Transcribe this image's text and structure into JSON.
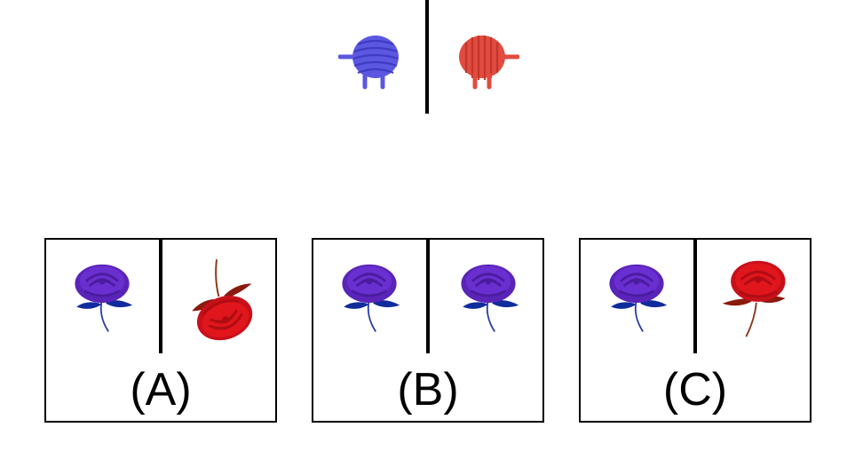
{
  "prompt": {
    "left_icon": "blue-yarn-icon",
    "right_icon": "red-yarn-icon"
  },
  "options": [
    {
      "label": "(A)",
      "left_icon": "purple-rose-icon",
      "right_icon": "red-rose-upside-down-icon"
    },
    {
      "label": "(B)",
      "left_icon": "purple-rose-icon",
      "right_icon": "purple-rose-icon"
    },
    {
      "label": "(C)",
      "left_icon": "purple-rose-icon",
      "right_icon": "red-rose-icon"
    }
  ],
  "colors": {
    "yarn_blue": "#5b57e0",
    "yarn_red": "#e24b3f",
    "rose_purple": "#6a2fd0",
    "rose_red": "#e0161c",
    "leaf_blue": "#102c9c",
    "leaf_red": "#8b1a0e"
  }
}
